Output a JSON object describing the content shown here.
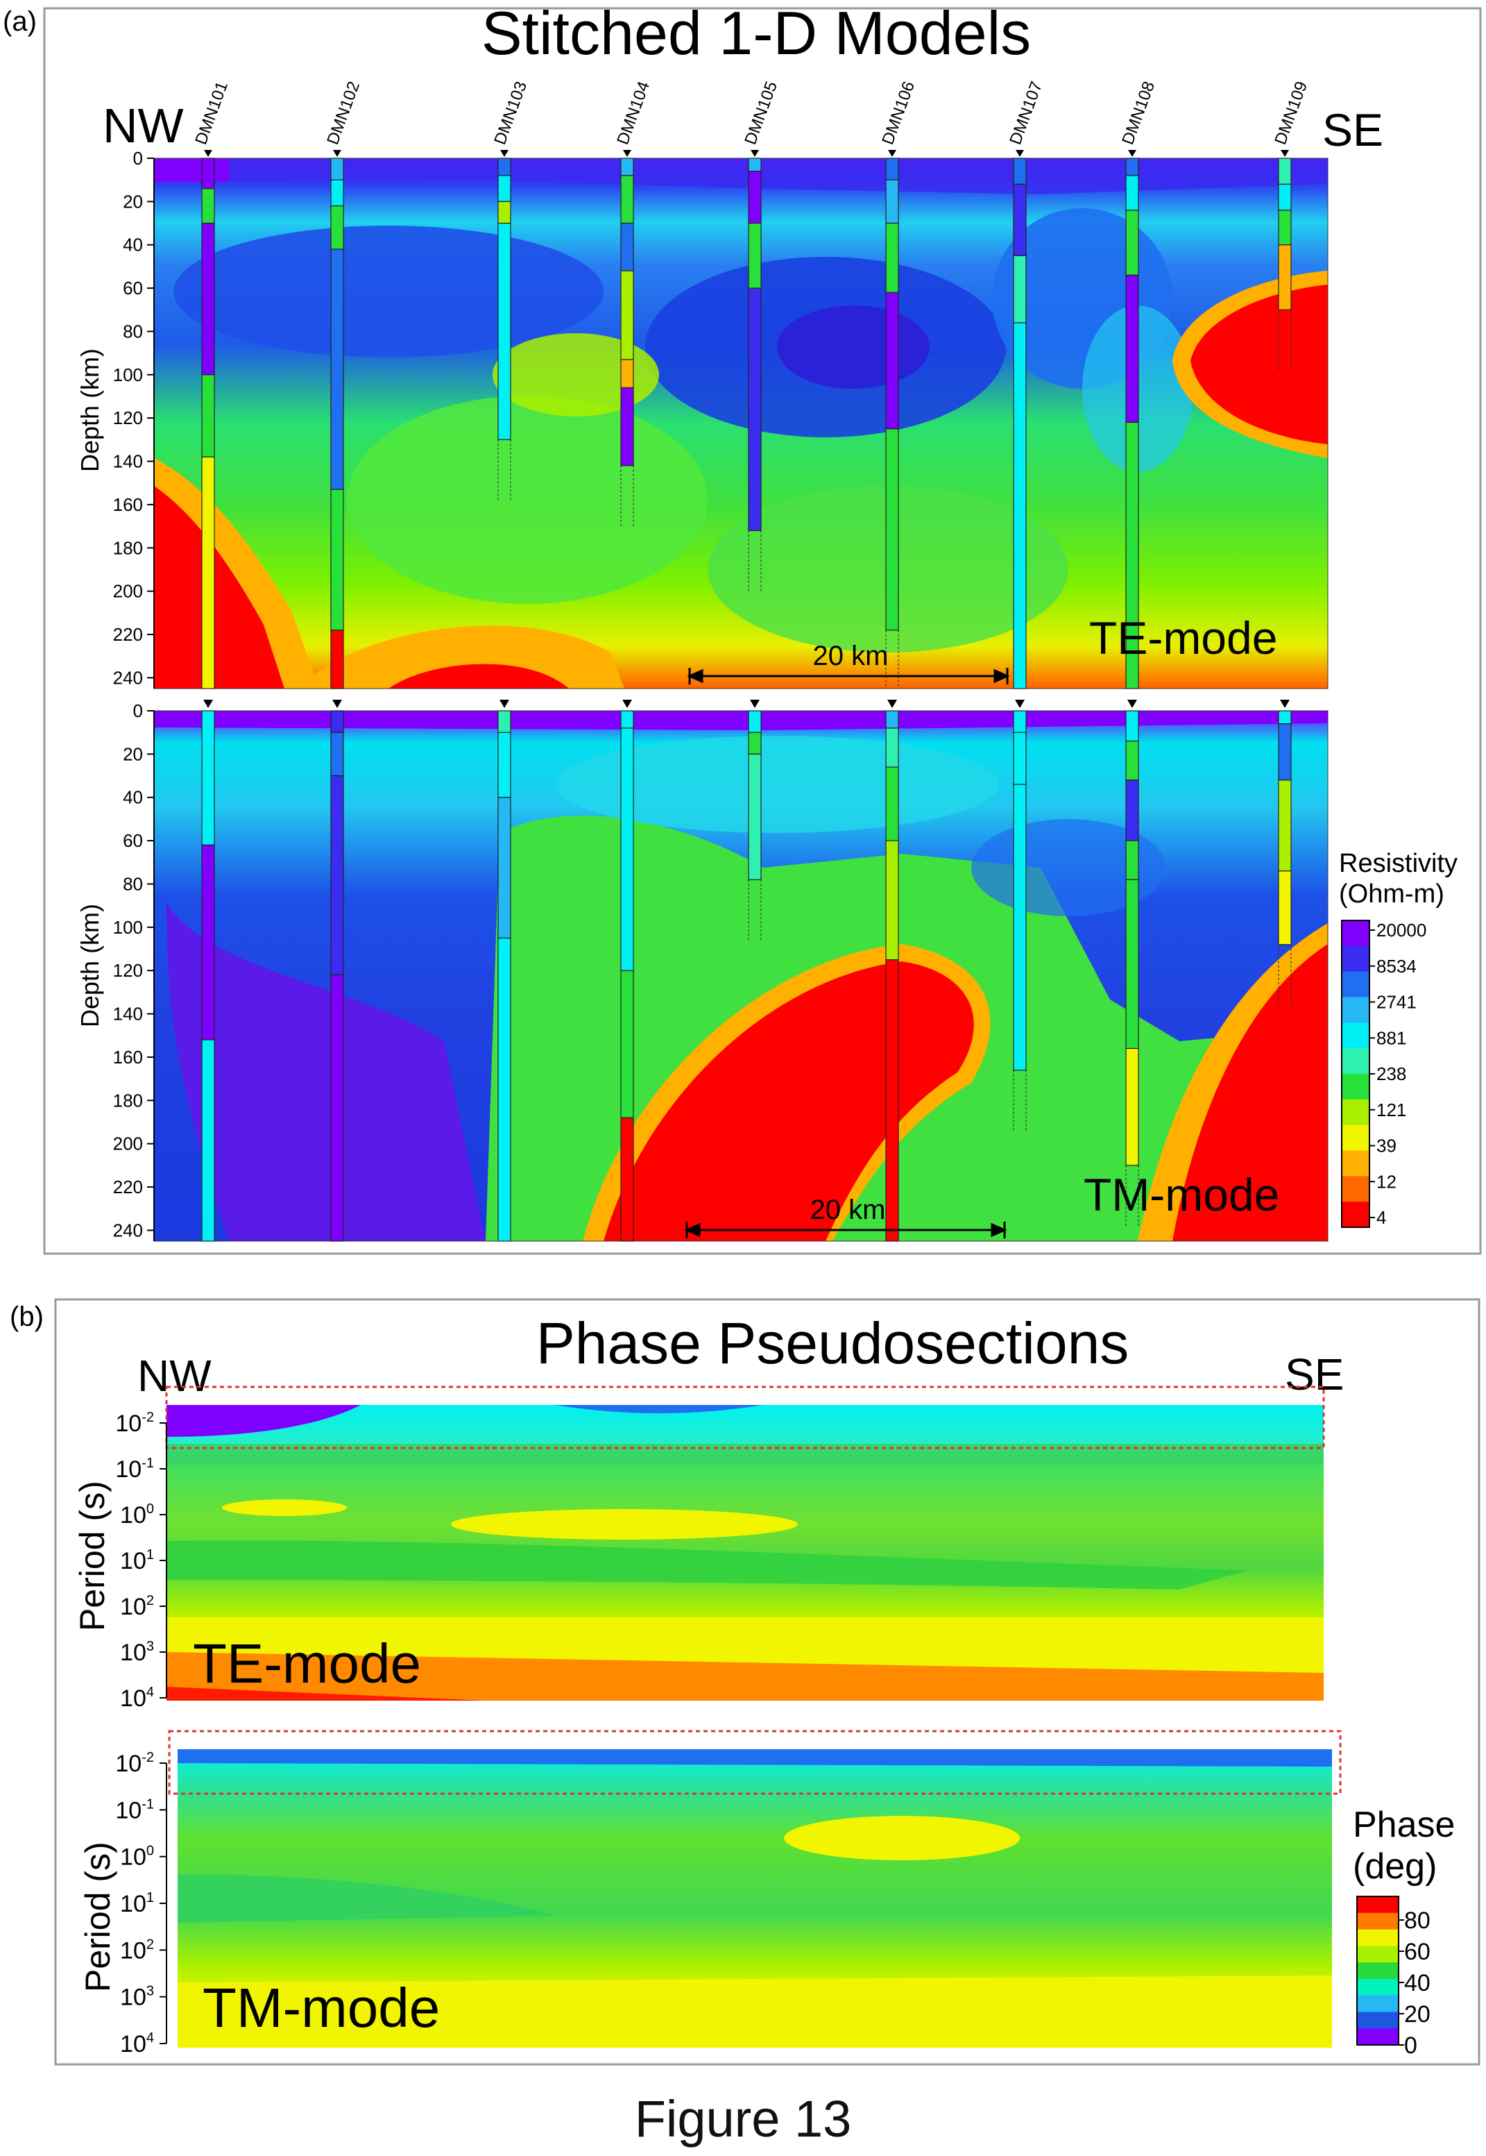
{
  "figure": {
    "caption": "Figure 13",
    "panel_a_letter": "(a)",
    "panel_b_letter": "(b)"
  },
  "panel_a": {
    "title": "Stitched 1-D Models",
    "left_label": "NW",
    "right_label": "SE",
    "ylabel": "Depth (km)",
    "stations": [
      "DMN101",
      "DMN102",
      "DMN103",
      "DMN104",
      "DMN105",
      "DMN106",
      "DMN107",
      "DMN108",
      "DMN109"
    ],
    "scale_bar_label": "20 km",
    "legend_title_1": "Resistivity",
    "legend_title_2": "(Ohm-m)",
    "legend_ticks": [
      "20000",
      "8534",
      "2741",
      "881",
      "238",
      "121",
      "39",
      "12",
      "4"
    ],
    "legend_colors": [
      "#7f00ff",
      "#3a2cf0",
      "#1f6ff0",
      "#25b8f5",
      "#00f0f5",
      "#2ef0b0",
      "#27e03a",
      "#a8f000",
      "#f2f500",
      "#ffb000",
      "#ff6a00",
      "#ff0000"
    ]
  },
  "panel_b": {
    "title": "Phase Pseudosections",
    "left_label": "NW",
    "right_label": "SE",
    "ylabel": "Period (s)",
    "legend_title_1": "Phase",
    "legend_title_2": "(deg)",
    "legend_ticks": [
      "80",
      "60",
      "40",
      "20",
      "0"
    ],
    "legend_colors": [
      "#ff0000",
      "#ff7a00",
      "#f2f500",
      "#a8f000",
      "#27d93a",
      "#00f0c0",
      "#25b8f5",
      "#1f55e0",
      "#7f00ff"
    ]
  },
  "chart_data": [
    {
      "type": "heatmap",
      "title": "Stitched 1-D Models",
      "subtitle": "TE-mode",
      "ylabel": "Depth (km)",
      "x": [
        "DMN101",
        "DMN102",
        "DMN103",
        "DMN104",
        "DMN105",
        "DMN106",
        "DMN107",
        "DMN108",
        "DMN109"
      ],
      "y_ticks": [
        0,
        20,
        40,
        60,
        80,
        100,
        120,
        140,
        160,
        180,
        200,
        220,
        240
      ],
      "ylim": [
        0,
        245
      ],
      "y_reversed": true,
      "color_scale": "log resistivity 4-20000 Ohm-m",
      "scale_bar": "20 km"
    },
    {
      "type": "heatmap",
      "subtitle": "TM-mode",
      "ylabel": "Depth (km)",
      "x": [
        "DMN101",
        "DMN102",
        "DMN103",
        "DMN104",
        "DMN105",
        "DMN106",
        "DMN107",
        "DMN108",
        "DMN109"
      ],
      "y_ticks": [
        0,
        20,
        40,
        60,
        80,
        100,
        120,
        140,
        160,
        180,
        200,
        220,
        240
      ],
      "ylim": [
        0,
        245
      ],
      "y_reversed": true,
      "color_scale": "log resistivity 4-20000 Ohm-m",
      "scale_bar": "20 km"
    },
    {
      "type": "heatmap",
      "title": "Phase Pseudosections",
      "subtitle": "TE-mode",
      "ylabel": "Period (s)",
      "y_ticks": [
        "10-2",
        "10-1",
        "100",
        "101",
        "102",
        "103",
        "104"
      ],
      "y_scale": "log",
      "color_scale": "phase 0-80 deg"
    },
    {
      "type": "heatmap",
      "subtitle": "TM-mode",
      "ylabel": "Period (s)",
      "y_ticks": [
        "10-2",
        "10-1",
        "100",
        "101",
        "102",
        "103",
        "104"
      ],
      "y_scale": "log",
      "color_scale": "phase 0-80 deg"
    }
  ]
}
